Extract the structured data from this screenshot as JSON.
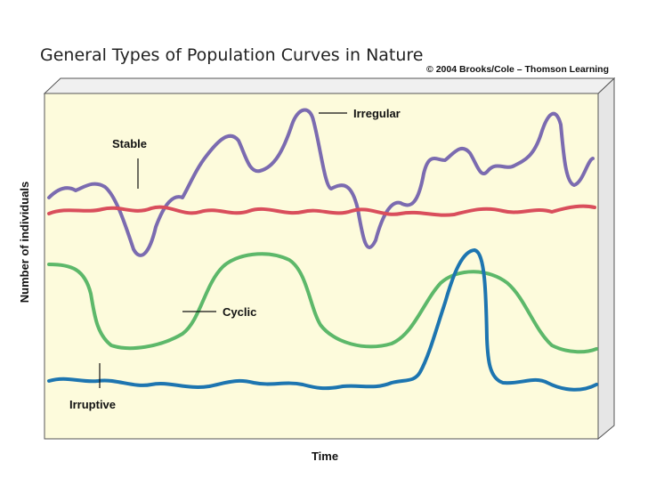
{
  "title": "General Types of Population Curves in Nature",
  "copyright": "© 2004 Brooks/Cole – Thomson Learning",
  "axes": {
    "x_label": "Time",
    "y_label": "Number of individuals"
  },
  "curves": [
    {
      "label": "Irregular"
    },
    {
      "label": "Stable"
    },
    {
      "label": "Cyclic"
    },
    {
      "label": "Irruptive"
    }
  ]
}
